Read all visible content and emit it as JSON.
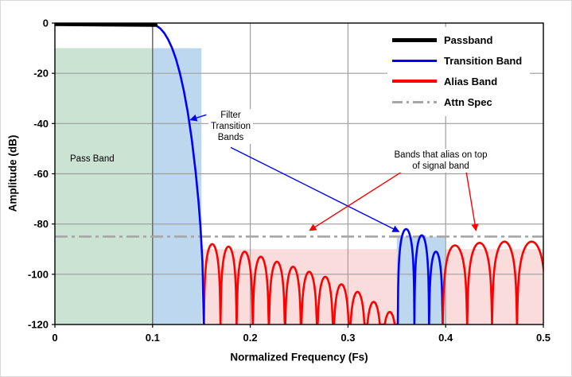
{
  "chart_data": {
    "type": "line",
    "title": "",
    "xlabel": "Normalized Frequency (Fs)",
    "ylabel": "Amplitude (dB)",
    "xlim": [
      0,
      0.5
    ],
    "ylim": [
      -120,
      0
    ],
    "x_ticks": [
      0,
      0.1,
      0.2,
      0.3,
      0.4,
      0.5
    ],
    "x_tick_labels": [
      "0",
      "0.1",
      "0.2",
      "0.3",
      "0.4",
      "0.5"
    ],
    "y_ticks": [
      0,
      -20,
      -40,
      -60,
      -80,
      -100,
      -120
    ],
    "y_tick_labels": [
      "0",
      "-20",
      "-40",
      "-60",
      "-80",
      "-100",
      "-120"
    ],
    "grid": true,
    "legend_position": "top-right",
    "attn_spec_db": -85,
    "boundary_lines": [
      {
        "x": 0.1,
        "color": "#6b6b6b",
        "width": 1.5
      }
    ],
    "regions": [
      {
        "name": "pass-band",
        "x": [
          0,
          0.1
        ],
        "y": [
          -120,
          -10
        ],
        "color": "#cbe3d2"
      },
      {
        "name": "transition-band",
        "x": [
          0.1,
          0.15
        ],
        "y": [
          -120,
          -10
        ],
        "color": "#bdd7ee"
      },
      {
        "name": "alias-stop-band",
        "x": [
          0.15,
          0.5
        ],
        "y": [
          -120,
          -90
        ],
        "color": "#fadcdc"
      },
      {
        "name": "aliasing-on-signal-band",
        "x": [
          0.35,
          0.4
        ],
        "y": [
          -120,
          -85
        ],
        "color": "#bdd7ee"
      }
    ],
    "series": [
      {
        "name": "Alias Band",
        "color": "#ff0000",
        "width": 2.6,
        "kind": "lobes",
        "lobes": [
          {
            "x0": 0.1525,
            "x1": 0.1695,
            "peak_db": -88
          },
          {
            "x0": 0.1695,
            "x1": 0.186,
            "peak_db": -89
          },
          {
            "x0": 0.186,
            "x1": 0.2025,
            "peak_db": -91
          },
          {
            "x0": 0.2025,
            "x1": 0.219,
            "peak_db": -93
          },
          {
            "x0": 0.219,
            "x1": 0.2355,
            "peak_db": -95
          },
          {
            "x0": 0.2355,
            "x1": 0.252,
            "peak_db": -97
          },
          {
            "x0": 0.252,
            "x1": 0.2685,
            "peak_db": -99
          },
          {
            "x0": 0.2685,
            "x1": 0.285,
            "peak_db": -101
          },
          {
            "x0": 0.285,
            "x1": 0.3015,
            "peak_db": -104
          },
          {
            "x0": 0.3015,
            "x1": 0.318,
            "peak_db": -107
          },
          {
            "x0": 0.318,
            "x1": 0.3345,
            "peak_db": -111
          },
          {
            "x0": 0.3345,
            "x1": 0.351,
            "peak_db": -115
          }
        ]
      },
      {
        "name": "Transition Band images",
        "color": "#0000ff",
        "width": 2.6,
        "kind": "lobes",
        "lobes": [
          {
            "x0": 0.351,
            "x1": 0.368,
            "peak_db": -82
          },
          {
            "x0": 0.368,
            "x1": 0.383,
            "peak_db": -84.5
          },
          {
            "x0": 0.383,
            "x1": 0.397,
            "peak_db": -91
          }
        ]
      },
      {
        "name": "Alias Band upper",
        "color": "#ff0000",
        "width": 2.6,
        "kind": "lobes",
        "lobes": [
          {
            "x0": 0.397,
            "x1": 0.422,
            "peak_db": -88.5
          },
          {
            "x0": 0.422,
            "x1": 0.4475,
            "peak_db": -87.5
          },
          {
            "x0": 0.4475,
            "x1": 0.473,
            "peak_db": -87
          },
          {
            "x0": 0.473,
            "x1": 0.503,
            "peak_db": -87
          }
        ]
      },
      {
        "name": "Transition Band",
        "color": "#0000ff",
        "width": 2.6,
        "kind": "points",
        "points": [
          [
            0.1,
            -0.5
          ],
          [
            0.104,
            -1.1
          ],
          [
            0.108,
            -2.2
          ],
          [
            0.112,
            -4.0
          ],
          [
            0.116,
            -6.6
          ],
          [
            0.12,
            -10.0
          ],
          [
            0.124,
            -14.4
          ],
          [
            0.128,
            -20.0
          ],
          [
            0.132,
            -27.0
          ],
          [
            0.136,
            -35.5
          ],
          [
            0.14,
            -46.0
          ],
          [
            0.144,
            -59.0
          ],
          [
            0.147,
            -71.0
          ],
          [
            0.149,
            -81.0
          ],
          [
            0.151,
            -95.0
          ],
          [
            0.1525,
            -120
          ]
        ]
      },
      {
        "name": "Passband",
        "color": "#000000",
        "width": 5,
        "kind": "points",
        "points": [
          [
            0,
            -0.4
          ],
          [
            0.103,
            -0.7
          ]
        ]
      }
    ]
  },
  "legend": {
    "items": [
      {
        "label": "Passband",
        "color": "#000000",
        "style": "solid",
        "thickness": 5
      },
      {
        "label": "Transition Band",
        "color": "#0000ff",
        "style": "solid",
        "thickness": 3
      },
      {
        "label": "Alias Band",
        "color": "#ff0000",
        "style": "solid",
        "thickness": 4
      },
      {
        "label": "Attn Spec",
        "color": "#a6a6a6",
        "style": "dash-dot",
        "thickness": 3
      }
    ]
  },
  "annotations": {
    "pass_band_label": "Pass Band",
    "transition_lines": [
      "Filter",
      "Transition",
      "Bands"
    ],
    "alias_lines": [
      "Bands that alias on top",
      "of signal band"
    ],
    "arrows": [
      {
        "name": "transition-arrow-short",
        "color": "#0000ff",
        "from": [
          0.155,
          -36.5
        ],
        "to": [
          0.139,
          -38.5
        ]
      },
      {
        "name": "transition-arrow-long",
        "color": "#0000ff",
        "from": [
          0.18,
          -49.5
        ],
        "to": [
          0.352,
          -83
        ]
      },
      {
        "name": "alias-arrow-left",
        "color": "#ff0000",
        "from": [
          0.356,
          -59
        ],
        "to": [
          0.261,
          -82.5
        ]
      },
      {
        "name": "alias-arrow-right",
        "color": "#ff0000",
        "from": [
          0.421,
          -59
        ],
        "to": [
          0.431,
          -82.5
        ]
      }
    ]
  }
}
